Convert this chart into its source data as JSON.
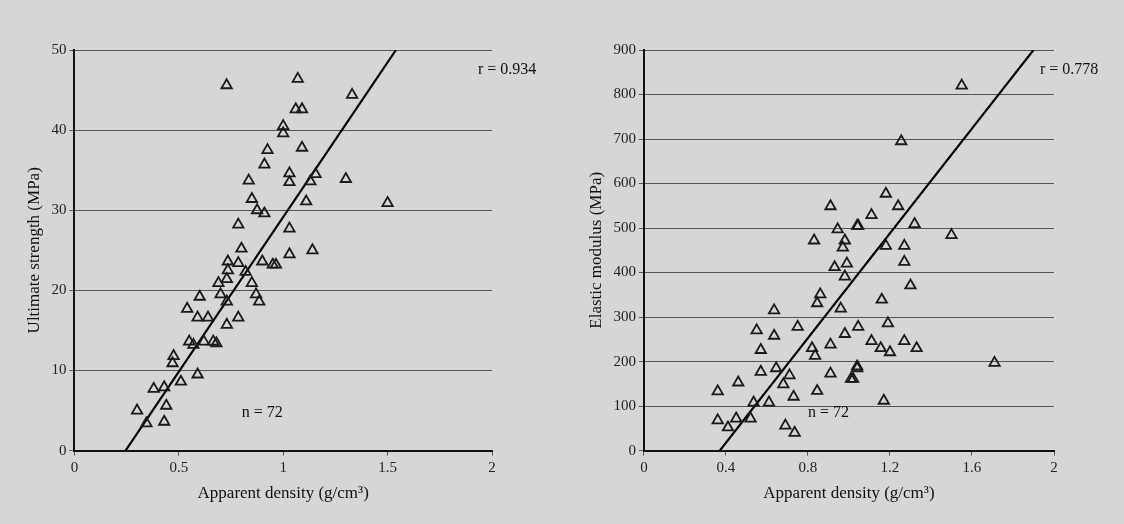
{
  "chart_data": [
    {
      "type": "scatter",
      "xlabel": "Apparent density (g/cm³)",
      "ylabel": "Ultimate strength (MPa)",
      "xlim": [
        0,
        2
      ],
      "xticks": [
        0,
        0.5,
        1,
        1.5,
        2
      ],
      "ylim": [
        0,
        50
      ],
      "yticks": [
        0,
        10,
        20,
        30,
        40,
        50
      ],
      "grid": "y",
      "marker": "triangle",
      "annotations": [
        "r = 0.934",
        "n = 72"
      ],
      "series": [
        {
          "color": "#1a1a1a",
          "x": [
            0.729,
            1.07,
            1.06,
            1.09,
            1.0,
            1.0,
            0.925,
            0.91,
            1.09,
            1.03,
            1.03,
            1.13,
            1.155,
            1.11,
            1.3,
            1.5,
            1.33,
            0.835,
            0.85,
            0.875,
            0.91,
            1.03,
            0.785,
            0.8,
            1.03,
            1.14,
            0.965,
            0.735,
            0.735,
            0.73,
            0.785,
            0.82,
            0.9,
            0.95,
            0.85,
            0.87,
            0.885,
            0.69,
            0.7,
            0.73,
            0.6,
            0.54,
            0.59,
            0.64,
            0.73,
            0.785,
            0.55,
            0.57,
            0.62,
            0.665,
            0.68,
            0.475,
            0.47,
            0.51,
            0.59,
            0.38,
            0.43,
            0.44,
            0.3,
            0.345,
            0.43
          ],
          "values": [
            45.6,
            46.4,
            42.6,
            42.6,
            40.5,
            39.6,
            37.5,
            35.7,
            37.8,
            34.6,
            33.5,
            33.6,
            34.5,
            31.1,
            33.9,
            30.9,
            44.4,
            33.7,
            31.4,
            30.0,
            29.6,
            27.7,
            28.2,
            25.2,
            24.5,
            25.0,
            23.2,
            23.6,
            22.5,
            21.4,
            23.4,
            22.3,
            23.6,
            23.2,
            20.9,
            19.5,
            18.6,
            20.9,
            19.5,
            18.6,
            19.2,
            17.7,
            16.6,
            16.6,
            15.7,
            16.6,
            13.6,
            13.2,
            13.6,
            13.6,
            13.4,
            11.8,
            10.9,
            8.6,
            9.5,
            7.7,
            7.9,
            5.6,
            5.0,
            3.4,
            3.6
          ]
        },
        {
          "type": "line",
          "color": "#000000",
          "marker": "none",
          "x": [
            0.245,
            1.54
          ],
          "values": [
            0,
            50
          ]
        }
      ]
    },
    {
      "type": "scatter",
      "xlabel": "Apparent density (g/cm³)",
      "ylabel": "Elastic modulus (MPa)",
      "xlim": [
        0,
        2
      ],
      "xticks": [
        0,
        0.4,
        0.8,
        1.2,
        1.6,
        2
      ],
      "ylim": [
        0,
        900
      ],
      "yticks": [
        0,
        100,
        200,
        300,
        400,
        500,
        600,
        700,
        800,
        900
      ],
      "grid": "y",
      "marker": "triangle",
      "annotations": [
        "r = 0.778",
        "n = 72"
      ],
      "series": [
        {
          "color": "#1a1a1a",
          "x": [
            0.91,
            0.83,
            0.945,
            1.04,
            0.98,
            0.97,
            0.93,
            0.99,
            0.98,
            0.86,
            0.845,
            0.96,
            0.635,
            0.55,
            0.635,
            0.75,
            0.57,
            0.82,
            0.835,
            0.91,
            0.98,
            1.045,
            0.57,
            0.645,
            0.71,
            0.68,
            0.46,
            0.36,
            0.845,
            0.61,
            0.535,
            0.73,
            0.36,
            0.41,
            0.45,
            0.52,
            0.69,
            0.735,
            0.91,
            1.04,
            1.02,
            1.55,
            1.255,
            1.18,
            1.24,
            1.11,
            1.045,
            1.32,
            1.5,
            1.18,
            1.27,
            1.27,
            1.3,
            1.16,
            1.19,
            1.11,
            1.155,
            1.2,
            1.27,
            1.33,
            1.04,
            1.01,
            1.71,
            1.17
          ],
          "values": [
            549,
            472,
            497,
            505,
            472,
            456,
            412,
            420,
            391,
            351,
            331,
            319,
            315,
            270,
            258,
            278,
            226,
            230,
            213,
            238,
            262,
            278,
            177,
            185,
            169,
            149,
            153,
            133,
            134,
            108,
            108,
            121,
            68,
            52,
            72,
            72,
            56,
            40,
            173,
            185,
            161,
            820,
            695,
            577,
            549,
            529,
            505,
            509,
            484,
            460,
            460,
            424,
            371,
            339,
            286,
            246,
            230,
            221,
            246,
            230,
            189,
            161,
            197,
            112
          ]
        },
        {
          "type": "line",
          "color": "#000000",
          "marker": "none",
          "x": [
            0.37,
            1.9
          ],
          "values": [
            0,
            900
          ]
        }
      ]
    }
  ]
}
